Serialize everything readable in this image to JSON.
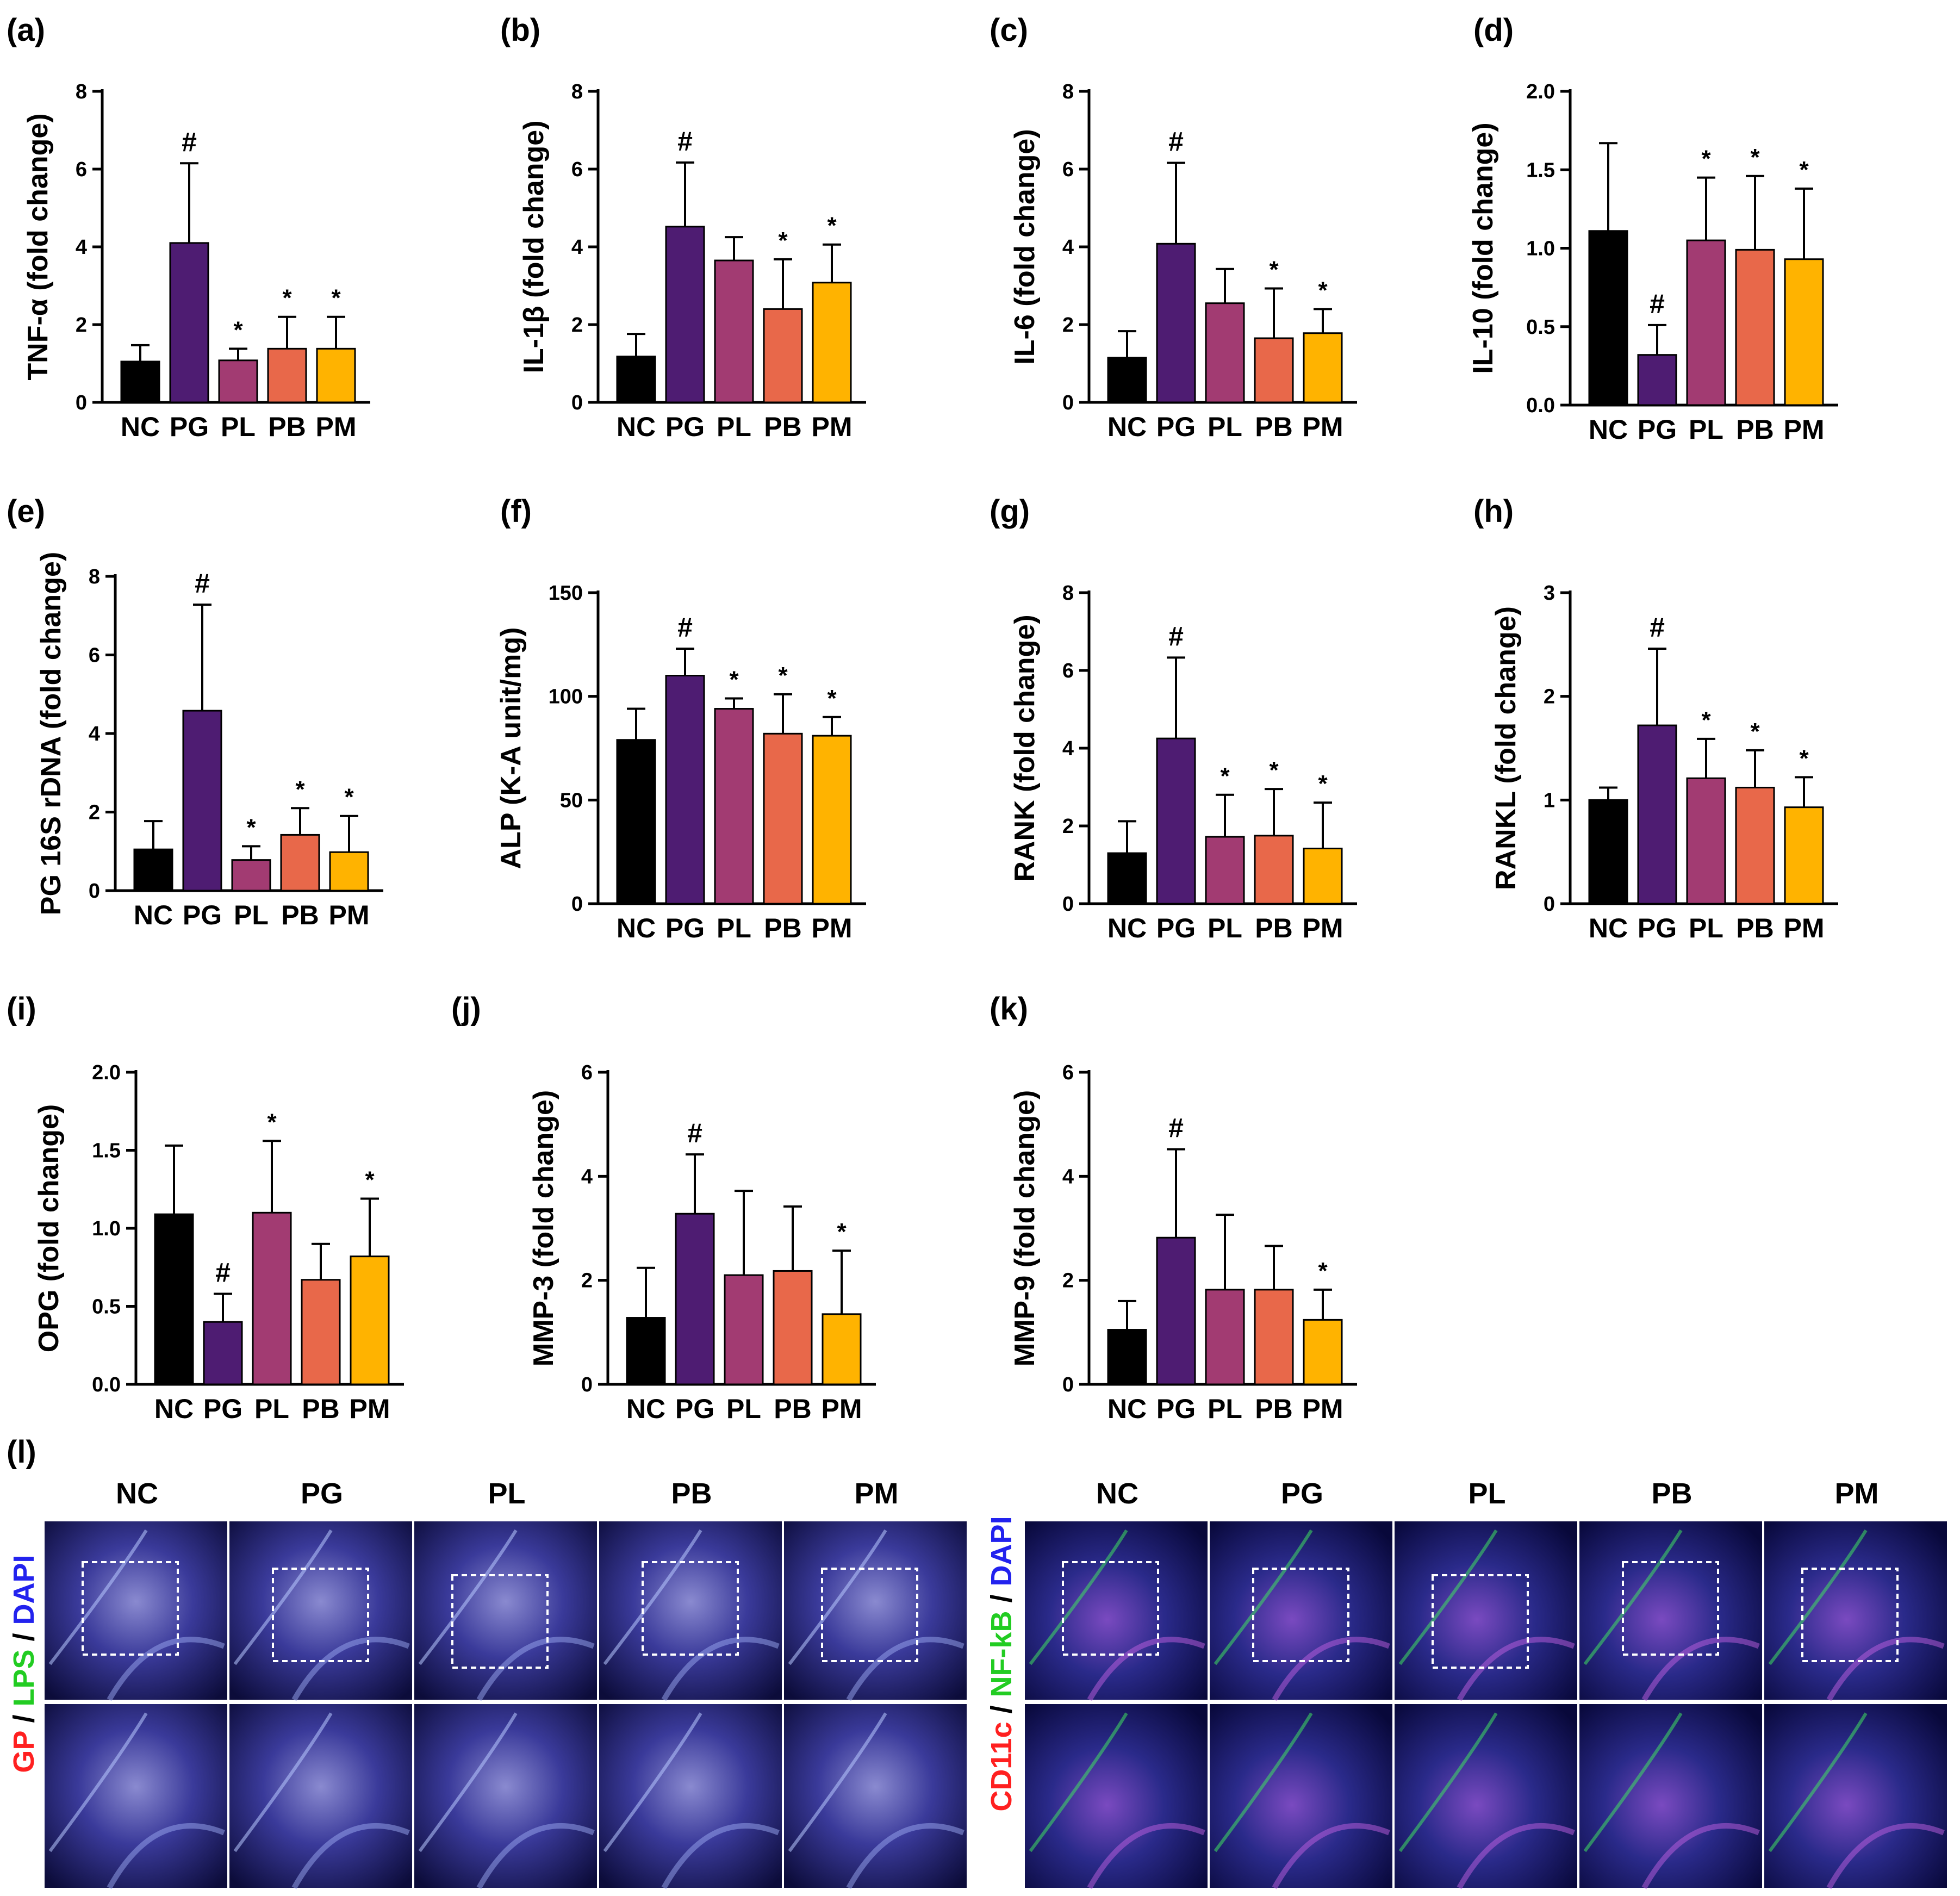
{
  "colors": {
    "NC": "#000000",
    "PG": "#4E1C72",
    "PL": "#A23B72",
    "PB": "#E8684A",
    "PM": "#FFB300"
  },
  "chart_data": [
    {
      "type": "bar",
      "panel": "(a)",
      "ylabel": "TNF-α (fold change)",
      "yticks": [
        "0",
        "2",
        "4",
        "6",
        "8"
      ],
      "ylim": [
        0,
        8
      ],
      "categories": [
        "NC",
        "PG",
        "PL",
        "PB",
        "PM"
      ],
      "values": [
        1.05,
        4.1,
        1.08,
        1.38,
        1.38
      ],
      "errors": [
        0.42,
        2.05,
        0.3,
        0.82,
        0.82
      ],
      "marks": [
        "",
        "#",
        "*",
        "*",
        "*"
      ]
    },
    {
      "type": "bar",
      "panel": "(b)",
      "ylabel": "IL-1β (fold change)",
      "yticks": [
        "0",
        "2",
        "4",
        "6",
        "8"
      ],
      "ylim": [
        0,
        8
      ],
      "categories": [
        "NC",
        "PG",
        "PL",
        "PB",
        "PM"
      ],
      "values": [
        1.18,
        4.52,
        3.65,
        2.4,
        3.08
      ],
      "errors": [
        0.58,
        1.65,
        0.6,
        1.28,
        0.98
      ],
      "marks": [
        "",
        "#",
        "",
        "*",
        "*"
      ]
    },
    {
      "type": "bar",
      "panel": "(c)",
      "ylabel": "IL-6 (fold change)",
      "yticks": [
        "0",
        "2",
        "4",
        "6",
        "8"
      ],
      "ylim": [
        0,
        8
      ],
      "categories": [
        "NC",
        "PG",
        "PL",
        "PB",
        "PM"
      ],
      "values": [
        1.15,
        4.08,
        2.55,
        1.65,
        1.78
      ],
      "errors": [
        0.68,
        2.08,
        0.88,
        1.28,
        0.62
      ],
      "marks": [
        "",
        "#",
        "",
        "*",
        "*"
      ]
    },
    {
      "type": "bar",
      "panel": "(d)",
      "ylabel": "IL-10 (fold change)",
      "yticks": [
        "0.0",
        "0.5",
        "1.0",
        "1.5",
        "2.0"
      ],
      "ylim": [
        0,
        2
      ],
      "categories": [
        "NC",
        "PG",
        "PL",
        "PB",
        "PM"
      ],
      "values": [
        1.11,
        0.32,
        1.05,
        0.99,
        0.93
      ],
      "errors": [
        0.56,
        0.19,
        0.4,
        0.47,
        0.45
      ],
      "marks": [
        "",
        "#",
        "*",
        "*",
        "*"
      ]
    },
    {
      "type": "bar",
      "panel": "(e)",
      "ylabel": "PG 16S rDNA (fold change)",
      "yticks": [
        "0",
        "2",
        "4",
        "6",
        "8"
      ],
      "ylim": [
        0,
        8
      ],
      "categories": [
        "NC",
        "PG",
        "PL",
        "PB",
        "PM"
      ],
      "values": [
        1.05,
        4.58,
        0.78,
        1.42,
        0.98
      ],
      "errors": [
        0.72,
        2.7,
        0.35,
        0.68,
        0.92
      ],
      "marks": [
        "",
        "#",
        "*",
        "*",
        "*"
      ]
    },
    {
      "type": "bar",
      "panel": "(f)",
      "ylabel": "ALP (K-A unit/mg)",
      "yticks": [
        "0",
        "50",
        "100",
        "150"
      ],
      "ylim": [
        0,
        150
      ],
      "categories": [
        "NC",
        "PG",
        "PL",
        "PB",
        "PM"
      ],
      "values": [
        79,
        110,
        94,
        82,
        81
      ],
      "errors": [
        15,
        13,
        5,
        19,
        9
      ],
      "marks": [
        "",
        "#",
        "*",
        "*",
        "*"
      ]
    },
    {
      "type": "bar",
      "panel": "(g)",
      "ylabel": "RANK (fold change)",
      "yticks": [
        "0",
        "2",
        "4",
        "6",
        "8"
      ],
      "ylim": [
        0,
        8
      ],
      "categories": [
        "NC",
        "PG",
        "PL",
        "PB",
        "PM"
      ],
      "values": [
        1.3,
        4.25,
        1.72,
        1.75,
        1.42
      ],
      "errors": [
        0.82,
        2.08,
        1.08,
        1.2,
        1.18
      ],
      "marks": [
        "",
        "#",
        "*",
        "*",
        "*"
      ]
    },
    {
      "type": "bar",
      "panel": "(h)",
      "ylabel": "RANKL (fold change)",
      "yticks": [
        "0",
        "1",
        "2",
        "3"
      ],
      "ylim": [
        0,
        3
      ],
      "categories": [
        "NC",
        "PG",
        "PL",
        "PB",
        "PM"
      ],
      "values": [
        1.0,
        1.72,
        1.21,
        1.12,
        0.93
      ],
      "errors": [
        0.12,
        0.74,
        0.38,
        0.36,
        0.29
      ],
      "marks": [
        "",
        "#",
        "*",
        "*",
        "*"
      ]
    },
    {
      "type": "bar",
      "panel": "(i)",
      "ylabel": "OPG  (fold change)",
      "yticks": [
        "0.0",
        "0.5",
        "1.0",
        "1.5",
        "2.0"
      ],
      "ylim": [
        0,
        2
      ],
      "categories": [
        "NC",
        "PG",
        "PL",
        "PB",
        "PM"
      ],
      "values": [
        1.09,
        0.4,
        1.1,
        0.67,
        0.82
      ],
      "errors": [
        0.44,
        0.18,
        0.46,
        0.23,
        0.37
      ],
      "marks": [
        "",
        "#",
        "*",
        "",
        "*"
      ]
    },
    {
      "type": "bar",
      "panel": "(j)",
      "ylabel": "MMP-3  (fold change)",
      "yticks": [
        "0",
        "2",
        "4",
        "6"
      ],
      "ylim": [
        0,
        6
      ],
      "categories": [
        "NC",
        "PG",
        "PL",
        "PB",
        "PM"
      ],
      "values": [
        1.28,
        3.28,
        2.1,
        2.18,
        1.35
      ],
      "errors": [
        0.96,
        1.14,
        1.62,
        1.24,
        1.22
      ],
      "marks": [
        "",
        "#",
        "",
        "",
        "*"
      ]
    },
    {
      "type": "bar",
      "panel": "(k)",
      "ylabel": "MMP-9  (fold change)",
      "yticks": [
        "0",
        "2",
        "4",
        "6"
      ],
      "ylim": [
        0,
        6
      ],
      "categories": [
        "NC",
        "PG",
        "PL",
        "PB",
        "PM"
      ],
      "values": [
        1.05,
        2.82,
        1.82,
        1.82,
        1.24
      ],
      "errors": [
        0.55,
        1.7,
        1.44,
        0.84,
        0.58
      ],
      "marks": [
        "",
        "#",
        "",
        "",
        "*"
      ]
    }
  ],
  "micrographs": {
    "panel": "(l)",
    "columns": [
      "NC",
      "PG",
      "PL",
      "PB",
      "PM"
    ],
    "left_stain": [
      {
        "text": "GP",
        "color": "#ff2020"
      },
      {
        "text": " / ",
        "color": "#000000"
      },
      {
        "text": "LPS",
        "color": "#22cc22"
      },
      {
        "text": " / ",
        "color": "#000000"
      },
      {
        "text": "DAPI",
        "color": "#2222ee"
      }
    ],
    "right_stain": [
      {
        "text": "CD11c",
        "color": "#ff2020"
      },
      {
        "text": " / ",
        "color": "#000000"
      },
      {
        "text": "NF-kB",
        "color": "#22cc22"
      },
      {
        "text": " / ",
        "color": "#000000"
      },
      {
        "text": "DAPI",
        "color": "#2222ee"
      }
    ]
  }
}
